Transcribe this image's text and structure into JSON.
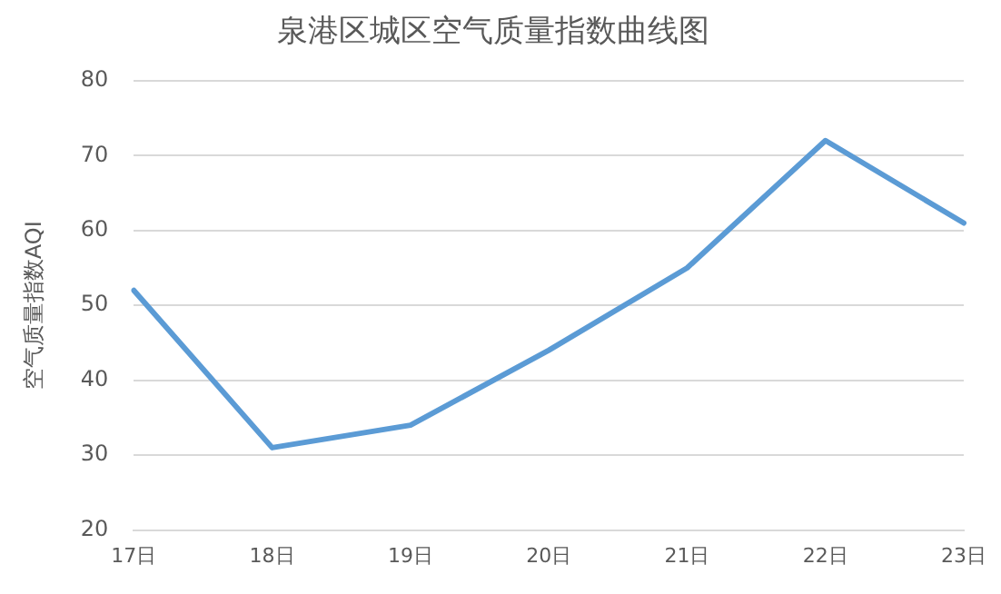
{
  "chart_data": {
    "type": "line",
    "title": "泉港区城区空气质量指数曲线图",
    "ylabel": "空气质量指数AQI",
    "categories": [
      "17日",
      "18日",
      "19日",
      "20日",
      "21日",
      "22日",
      "23日"
    ],
    "series": [
      {
        "color": "#5b9bd5",
        "values": [
          52,
          31,
          34,
          44,
          55,
          72,
          61
        ]
      }
    ],
    "ylim": [
      20,
      80
    ],
    "yticks": [
      20,
      30,
      40,
      50,
      60,
      70,
      80
    ],
    "grid": "y",
    "legend": false,
    "marker": "none",
    "line_style": "solid"
  }
}
